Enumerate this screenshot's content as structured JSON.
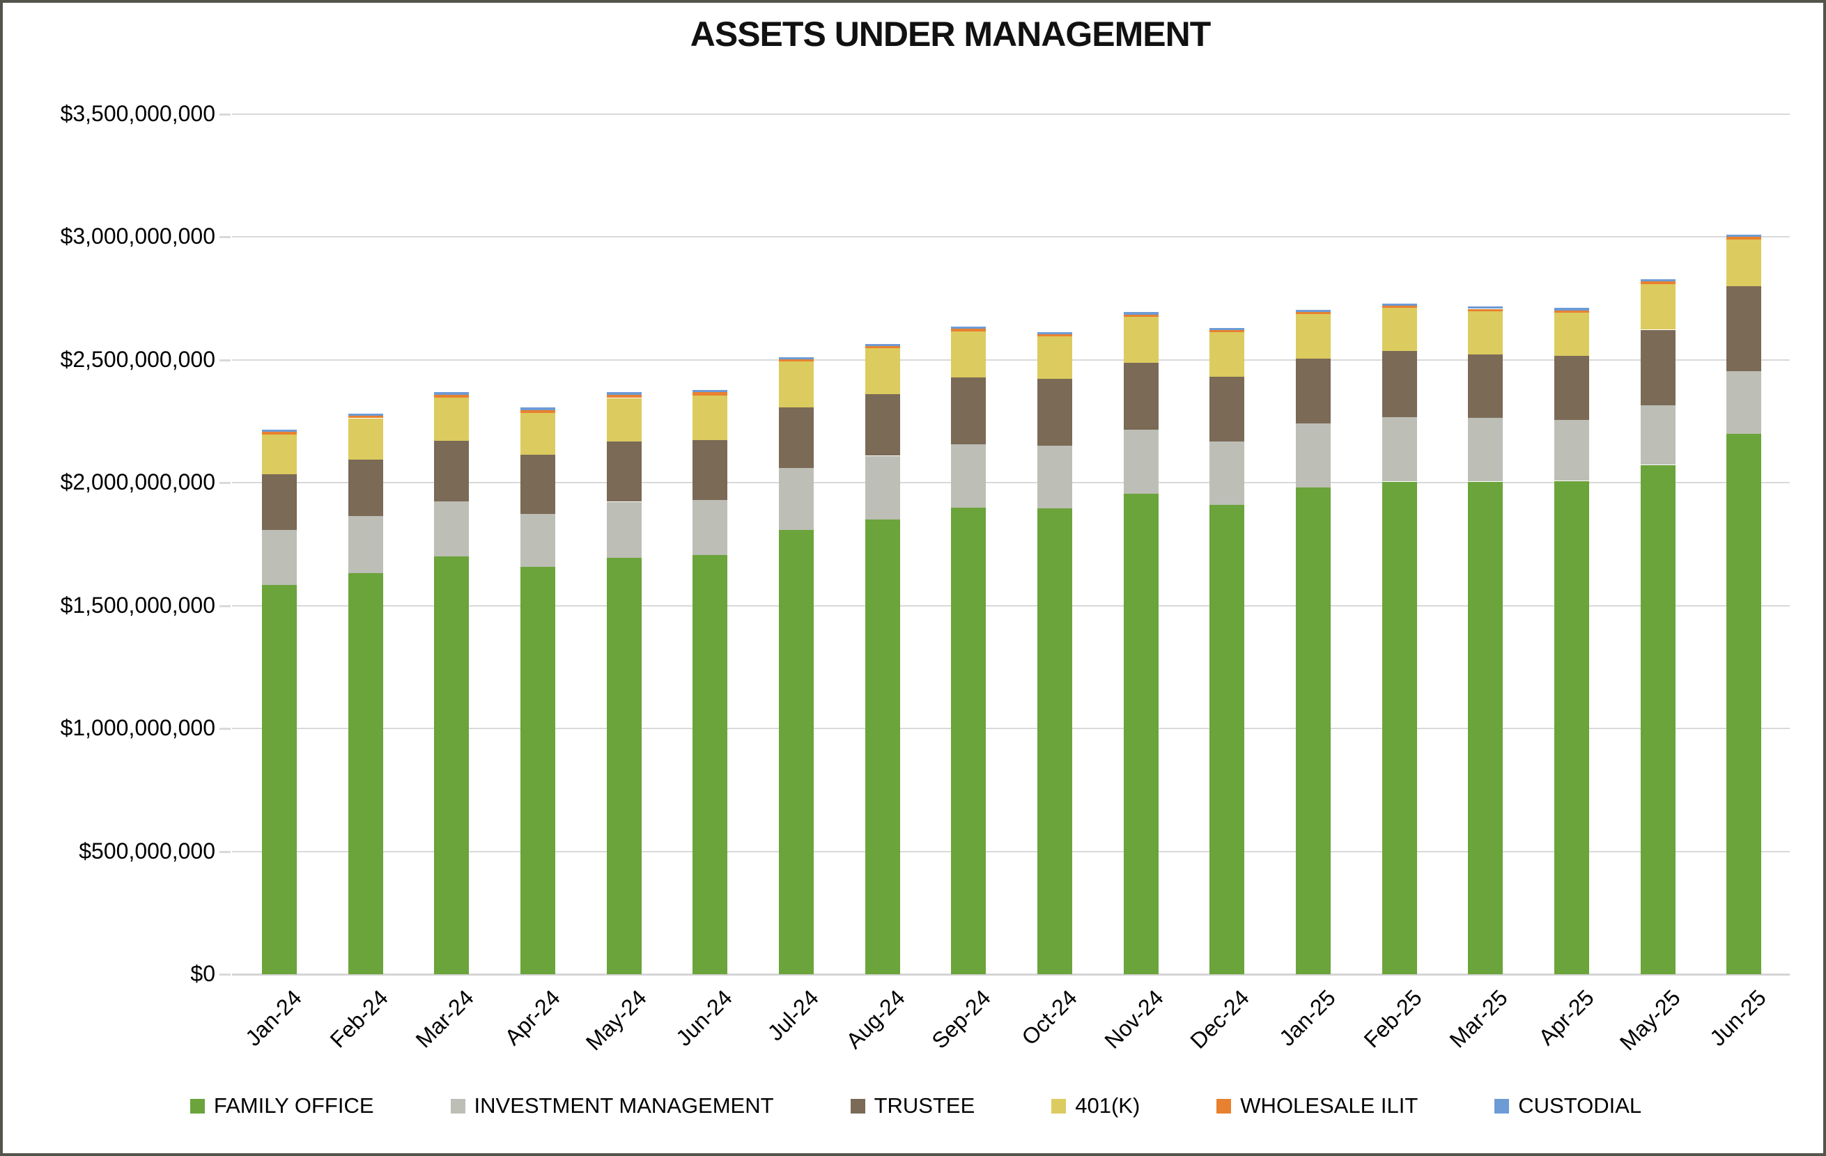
{
  "chart_data": {
    "type": "bar",
    "stacked": true,
    "title": "ASSETS UNDER MANAGEMENT",
    "categories": [
      "Jan-24",
      "Feb-24",
      "Mar-24",
      "Apr-24",
      "May-24",
      "Jun-24",
      "Jul-24",
      "Aug-24",
      "Sep-24",
      "Oct-24",
      "Nov-24",
      "Dec-24",
      "Jan-25",
      "Feb-25",
      "Mar-25",
      "Apr-25",
      "May-25",
      "Jun-25"
    ],
    "series": [
      {
        "name": "FAMILY OFFICE",
        "color": "#6AA43A",
        "values": [
          1585000000,
          1632000000,
          1700000000,
          1658000000,
          1695000000,
          1705000000,
          1808000000,
          1852000000,
          1898000000,
          1895000000,
          1955000000,
          1910000000,
          1982000000,
          2005000000,
          2005000000,
          2008000000,
          2073000000,
          2198000000
        ]
      },
      {
        "name": "INVESTMENT MANAGEMENT",
        "color": "#BDBEB6",
        "values": [
          222000000,
          232000000,
          225000000,
          215000000,
          228000000,
          226000000,
          252000000,
          258000000,
          259000000,
          257000000,
          261000000,
          259000000,
          259000000,
          262000000,
          259000000,
          247000000,
          243000000,
          257000000
        ]
      },
      {
        "name": "TRUSTEE",
        "color": "#7A6A56",
        "values": [
          228000000,
          230000000,
          245000000,
          242000000,
          246000000,
          243000000,
          246000000,
          251000000,
          271000000,
          270000000,
          273000000,
          262000000,
          263000000,
          269000000,
          259000000,
          263000000,
          307000000,
          346000000
        ]
      },
      {
        "name": "401(K)",
        "color": "#DCCB5F",
        "values": [
          162000000,
          169000000,
          176000000,
          170000000,
          176000000,
          181000000,
          188000000,
          186000000,
          189000000,
          174000000,
          186000000,
          181000000,
          182000000,
          176000000,
          175000000,
          175000000,
          186000000,
          190000000
        ]
      },
      {
        "name": "WHOLESALE ILIT",
        "color": "#E8812F",
        "values": [
          11000000,
          9000000,
          11000000,
          10000000,
          12000000,
          13000000,
          8000000,
          10000000,
          9000000,
          9000000,
          10000000,
          9000000,
          9000000,
          9000000,
          10000000,
          9000000,
          10000000,
          10000000
        ]
      },
      {
        "name": "CUSTODIAL",
        "color": "#6D9BD5",
        "values": [
          7000000,
          10000000,
          11000000,
          11000000,
          11000000,
          11000000,
          9000000,
          8000000,
          9000000,
          9000000,
          9000000,
          9000000,
          9000000,
          9000000,
          9000000,
          10000000,
          10000000,
          10000000
        ]
      }
    ],
    "y_axis": {
      "min": 0,
      "max": 3500000000,
      "tick_interval": 500000000,
      "tick_labels": [
        "$0",
        "$500,000,000",
        "$1,000,000,000",
        "$1,500,000,000",
        "$2,000,000,000",
        "$2,500,000,000",
        "$3,000,000,000",
        "$3,500,000,000"
      ]
    },
    "xlabel": "",
    "ylabel": "",
    "grid": true,
    "legend_position": "bottom",
    "colors": {
      "gridline": "#D9D9D9",
      "axis_line": "#D4D4D4",
      "frame_border": "#53544B",
      "text": "#000000",
      "background": "#FFFFFF"
    }
  }
}
